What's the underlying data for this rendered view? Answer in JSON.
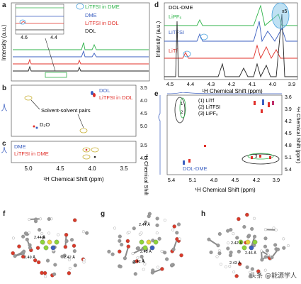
{
  "figure": {
    "panel_labels": [
      "a",
      "b",
      "c",
      "d",
      "e",
      "f",
      "g",
      "h"
    ],
    "watermark": "头条 @能源学人"
  },
  "panel_a": {
    "ylabel": "Intensity (a.u.)",
    "inset_ticks": [
      "4.6",
      "4.4"
    ],
    "legend": [
      {
        "label": "LiTFSI in DME",
        "color": "#2fb34a"
      },
      {
        "label": "DME",
        "color": "#3b5fc0"
      },
      {
        "label": "LiTFSI in DOL",
        "color": "#e0302a"
      },
      {
        "label": "DOL",
        "color": "#222222"
      }
    ]
  },
  "panel_b": {
    "legend": [
      {
        "label": "DOL",
        "color": "#3b5fc0"
      },
      {
        "label": "LiTFSI in DOL",
        "color": "#e0302a"
      }
    ],
    "annotation": "Solvent-solvent pairs",
    "d2o": "D₂O",
    "yticks": [
      "3.5",
      "4.0",
      "4.5",
      "5.0"
    ]
  },
  "panel_c": {
    "legend": [
      {
        "label": "DME",
        "color": "#3b5fc0"
      },
      {
        "label": "LiTFSI in DME",
        "color": "#e0302a"
      }
    ],
    "yticks": [
      "3.5",
      "4.0"
    ],
    "xticks": [
      "5.0",
      "4.5",
      "4.0",
      "3.5"
    ],
    "xlabel": "¹H Chemical Shift (ppm)",
    "ylabel": "¹H Chemical Shift (ppm)"
  },
  "panel_d": {
    "title": "DOL-DME",
    "labels": [
      {
        "label": "LiPF₆",
        "color": "#2fb34a"
      },
      {
        "label": "LiTFSI",
        "color": "#3b5fc0"
      },
      {
        "label": "LiTf",
        "color": "#e0302a"
      }
    ],
    "zoom": "x5",
    "ylabel": "Intensity (a.u.)",
    "xticks": [
      "4.5",
      "4.4",
      "4.3",
      "4.2",
      "4.1",
      "4.0",
      "3.9"
    ],
    "xlabel": "¹H Chemical Shift (ppm)"
  },
  "panel_e": {
    "legend": [
      "(1) LiTf",
      "(2) LiTFSI",
      "(3) LiPF₆"
    ],
    "sample": "DOL-DME",
    "yticks": [
      "3.6",
      "3.9",
      "4.2",
      "4.5",
      "4.8",
      "5.1",
      "5.4"
    ],
    "xticks": [
      "5.4",
      "5.1",
      "4.8",
      "4.5",
      "4.2",
      "3.9"
    ],
    "xlabel": "¹H Chemical Shift (ppm)",
    "ylabel": "¹H Chemical Shift (ppm)",
    "marks": [
      "1",
      "2",
      "3"
    ]
  },
  "panel_f": {
    "distances": [
      "2.44 Å",
      "2.49 Å",
      "2.42 Å"
    ]
  },
  "panel_g": {
    "distances": [
      "2.44 Å",
      "2.45 Å",
      "2.42 Å"
    ]
  },
  "panel_h": {
    "distances": [
      "2.42 Å",
      "2.46 Å",
      "2.43 Å"
    ]
  }
}
